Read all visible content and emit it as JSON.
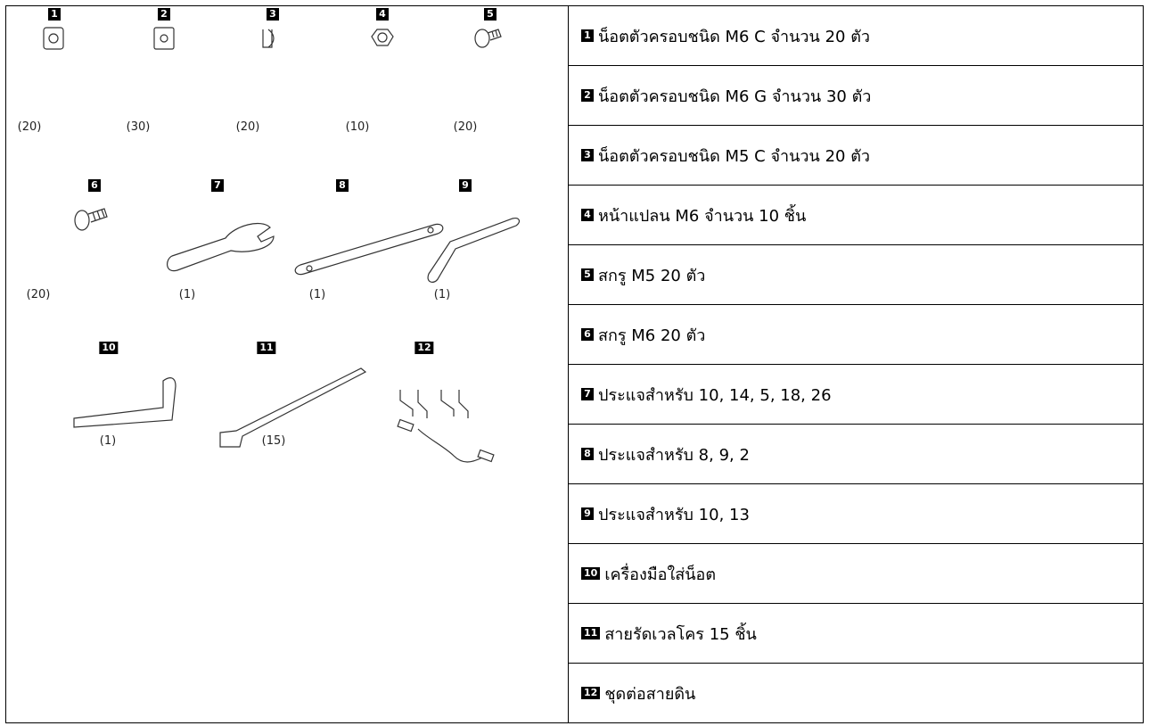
{
  "illustration": {
    "items": [
      {
        "number": "1",
        "quantity": "(20)"
      },
      {
        "number": "2",
        "quantity": "(30)"
      },
      {
        "number": "3",
        "quantity": "(20)"
      },
      {
        "number": "4",
        "quantity": "(10)"
      },
      {
        "number": "5",
        "quantity": "(20)"
      },
      {
        "number": "6",
        "quantity": "(20)"
      },
      {
        "number": "7",
        "quantity": "(1)"
      },
      {
        "number": "8",
        "quantity": "(1)"
      },
      {
        "number": "9",
        "quantity": "(1)"
      },
      {
        "number": "10",
        "quantity": "(1)"
      },
      {
        "number": "11",
        "quantity": "(15)"
      },
      {
        "number": "12"
      }
    ]
  },
  "table": {
    "rows": [
      {
        "number": "1",
        "text": "น็อตตัวครอบชนิด M6 C จำนวน 20 ตัว"
      },
      {
        "number": "2",
        "text": "น็อตตัวครอบชนิด M6 G จำนวน 30 ตัว"
      },
      {
        "number": "3",
        "text": "น็อตตัวครอบชนิด M5 C จำนวน 20 ตัว"
      },
      {
        "number": "4",
        "text": "หน้าแปลน M6 จำนวน 10 ชิ้น"
      },
      {
        "number": "5",
        "text": "สกรู M5 20 ตัว"
      },
      {
        "number": "6",
        "text": "สกรู M6 20 ตัว"
      },
      {
        "number": "7",
        "text": "ประแจสำหรับ 10, 14, 5, 18, 26"
      },
      {
        "number": "8",
        "text": "ประแจสำหรับ 8, 9, 2"
      },
      {
        "number": "9",
        "text": "ประแจสำหรับ 10, 13"
      },
      {
        "number": "10",
        "text": "เครื่องมือใส่น็อต"
      },
      {
        "number": "11",
        "text": "สายรัดเวลโคร 15 ชิ้น"
      },
      {
        "number": "12",
        "text": "ชุดต่อสายดิน"
      }
    ]
  }
}
